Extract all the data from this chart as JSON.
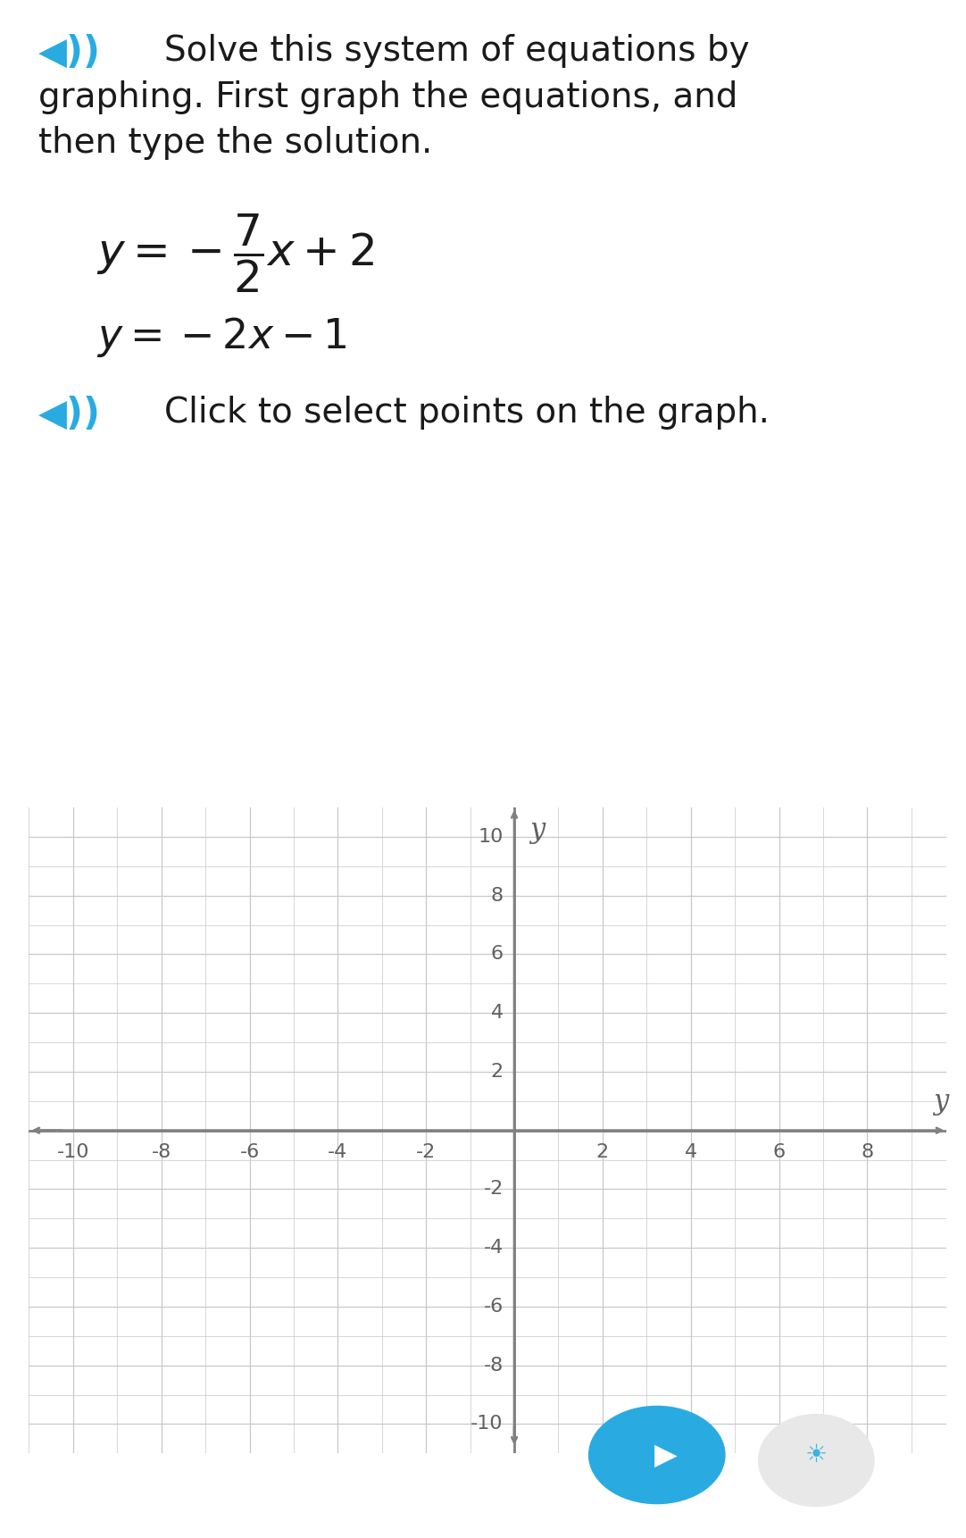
{
  "bg_color": "#ffffff",
  "speaker_color": "#29abe2",
  "grid_color": "#c8c8c8",
  "axis_color": "#808080",
  "tick_label_color": "#606060",
  "xlim": [
    -11,
    9.8
  ],
  "ylim": [
    -10.8,
    11
  ],
  "xticks": [
    -10,
    -8,
    -6,
    -4,
    -2,
    2,
    4,
    6,
    8
  ],
  "yticks": [
    -10,
    -8,
    -6,
    -4,
    -2,
    2,
    4,
    6,
    8,
    10
  ],
  "text_fontsize": 28,
  "tick_fontsize": 16,
  "axis_letter_fontsize": 22,
  "button_color": "#29abe2",
  "lightbulb_bg": "#f0f0f0"
}
